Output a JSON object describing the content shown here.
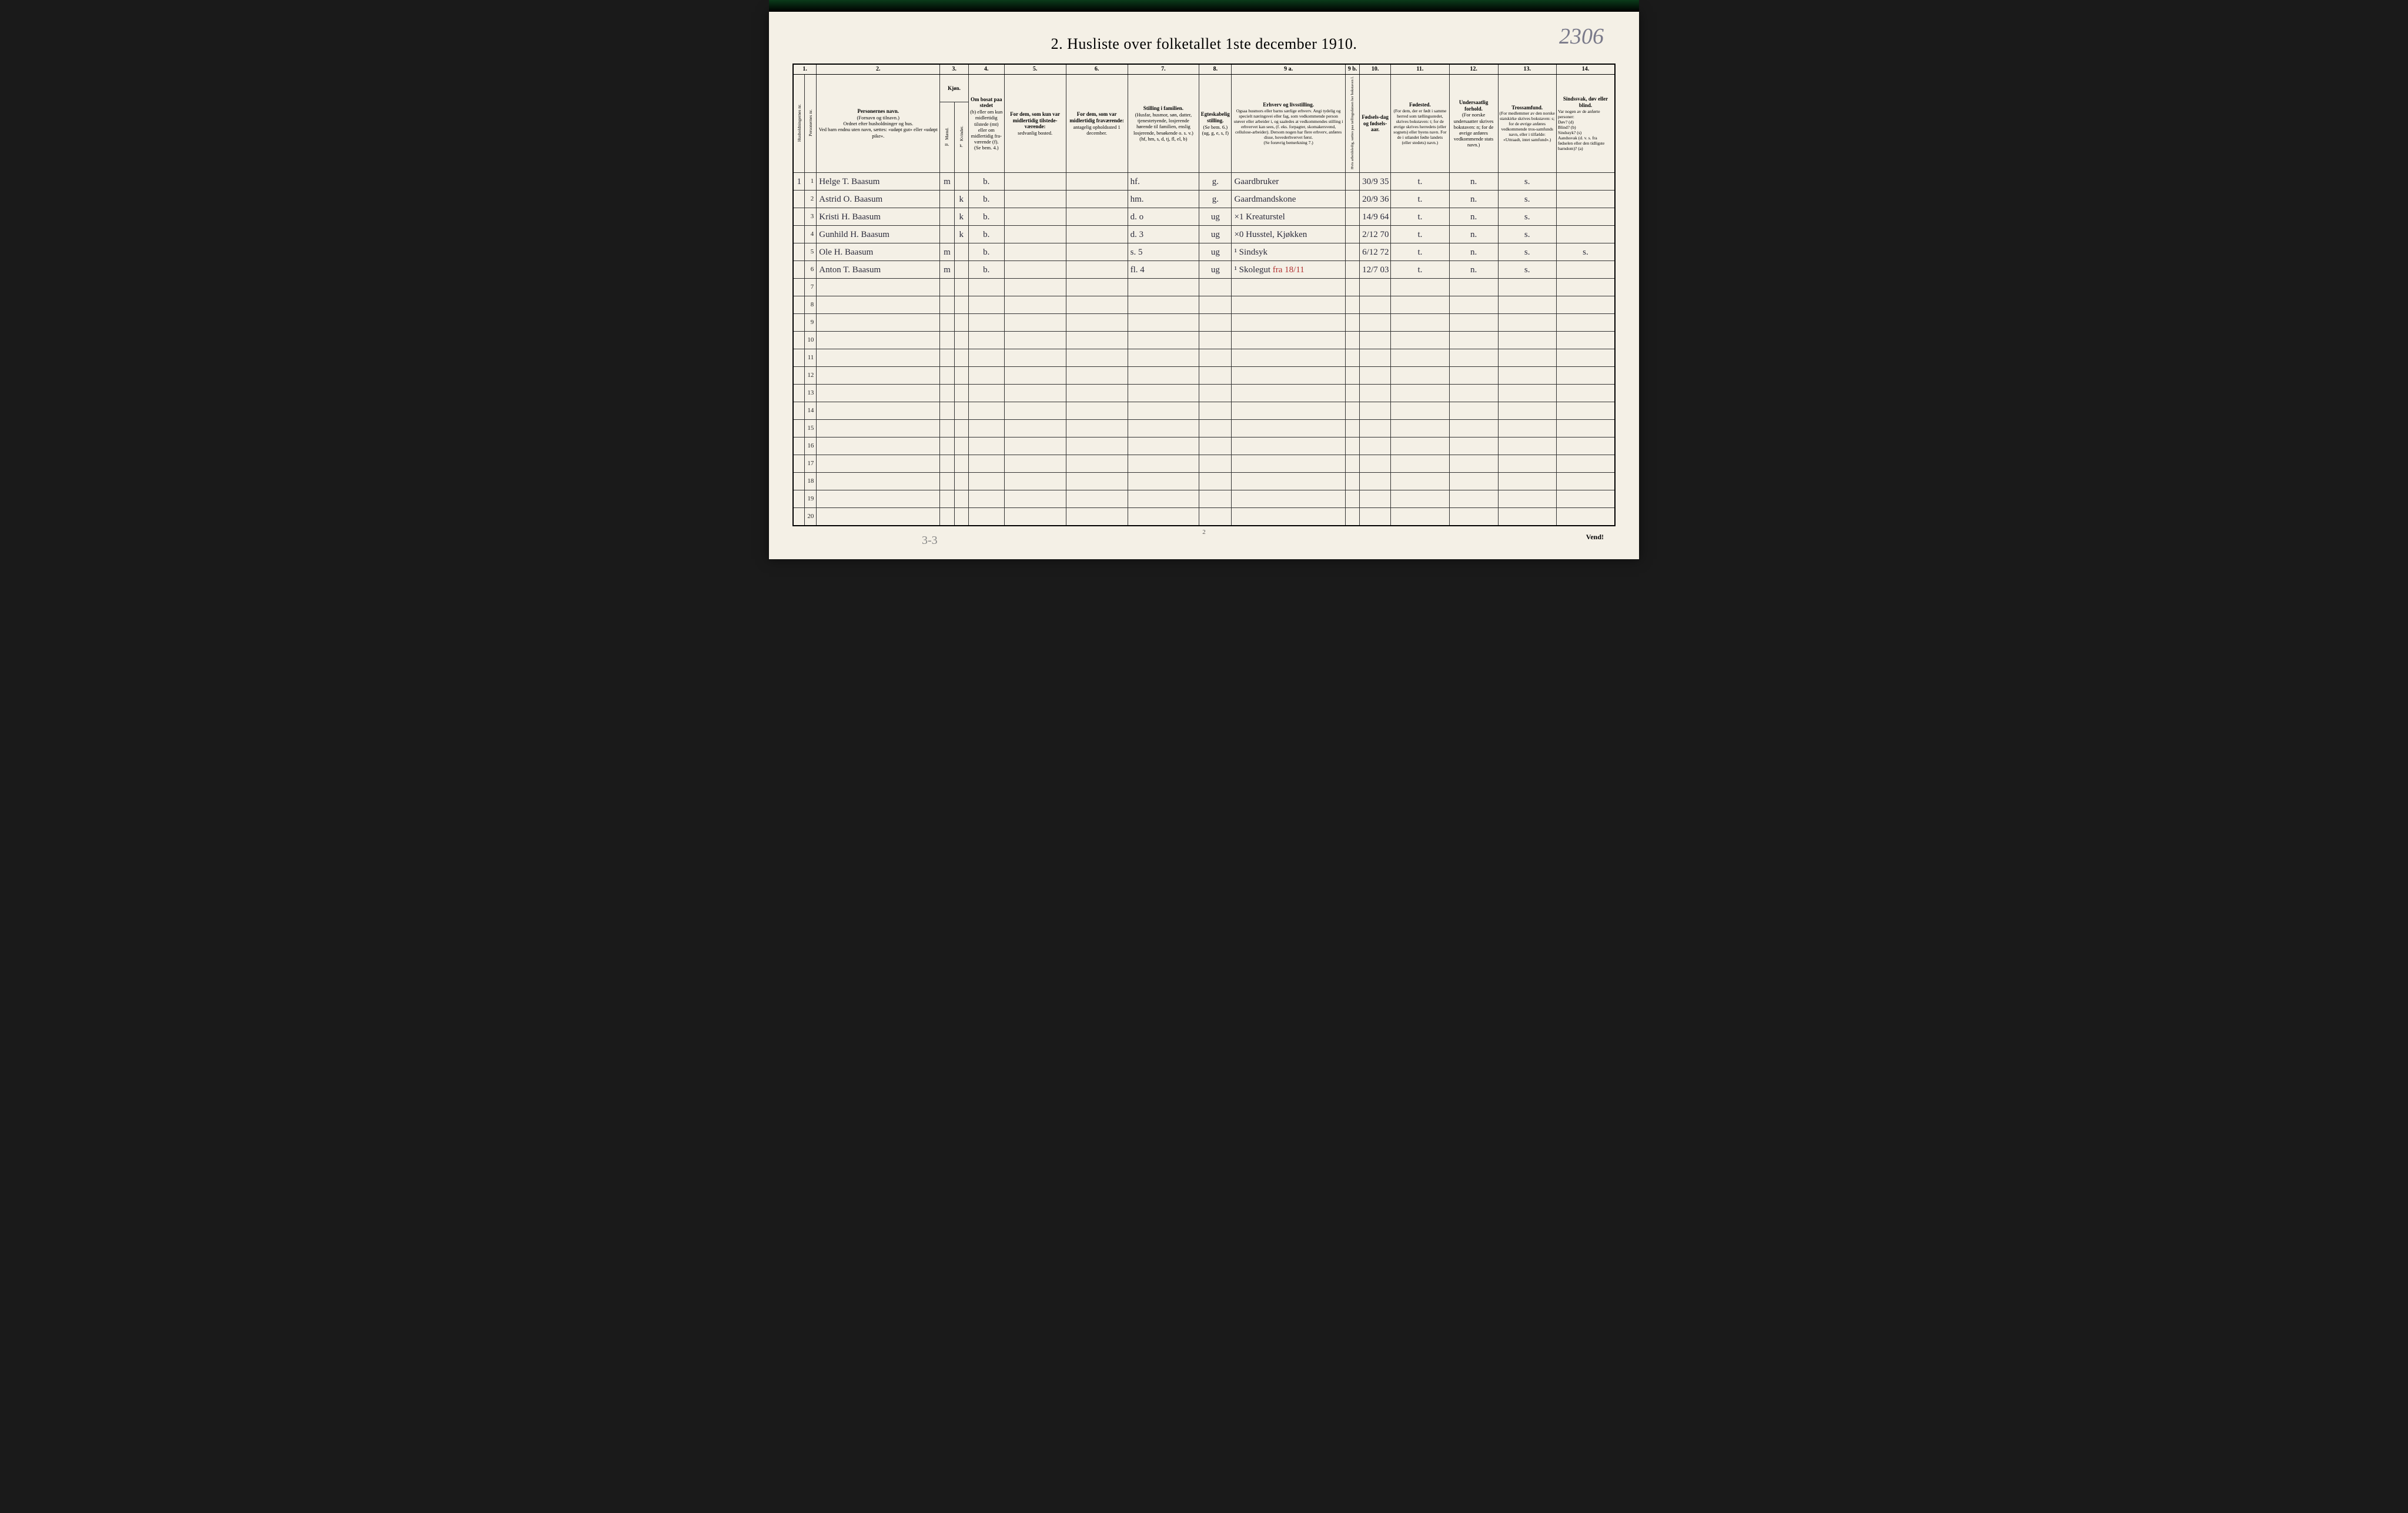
{
  "page": {
    "title": "2.  Husliste over folketallet 1ste december 1910.",
    "handwritten_number": "2306",
    "footer_page_num": "2",
    "bottom_note": "3-3",
    "vend": "Vend!",
    "colors": {
      "paper": "#f4f0e6",
      "ink": "#2a2a3a",
      "red_ink": "#b03030",
      "border": "#333333"
    }
  },
  "columns": {
    "numbers": [
      "1.",
      "2.",
      "3.",
      "4.",
      "5.",
      "6.",
      "7.",
      "8.",
      "9 a.",
      "9 b.",
      "10.",
      "11.",
      "12.",
      "13.",
      "14."
    ],
    "headers": {
      "c1": {
        "title": "Husholdningernes nr."
      },
      "c1b": {
        "title": "Personernes nr."
      },
      "c2": {
        "title": "Personernes navn.",
        "sub": "(Fornavn og tilnavn.)\nOrdnet efter husholdninger og hus.\nVed barn endnu uten navn, sættes: «udøpt gut» eller «udøpt pike»."
      },
      "c3": {
        "title": "Kjøn.",
        "sub_m": "Mænd.",
        "sub_k": "Kvinder.",
        "mk": "m.   k."
      },
      "c4": {
        "title": "Om bosat paa stedet",
        "sub": "(b) eller om kun midlertidig tilstede (mt) eller om midlertidig fra-værende (f).\n(Se bem. 4.)"
      },
      "c5": {
        "title": "For dem, som kun var midlertidig tilstede-værende:",
        "sub": "sedvanlig bosted."
      },
      "c6": {
        "title": "For dem, som var midlertidig fraværende:",
        "sub": "antagelig opholdssted 1 december."
      },
      "c7": {
        "title": "Stilling i familien.",
        "sub": "(Husfar, husmor, søn, datter, tjenestetyende, losjerende hørende til familien, enslig losjerende, besøkende o. s. v.)\n(hf, hm, s, d, tj, fl, el, b)"
      },
      "c8": {
        "title": "Egteskabelig stilling.",
        "sub": "(Se bem. 6.)\n(ug, g, e, s, f)"
      },
      "c9a": {
        "title": "Erhverv og livsstilling.",
        "sub": "Ogsaa husmors eller barns særlige erhverv. Angi tydelig og specielt næringsvei eller fag, som vedkommende person utøver eller arbeider i, og saaledes at vedkommendes stilling i erhvervet kan sees, (f. eks. forpagter, skomakersvend, cellulose-arbeider). Dersom nogen har flere erhverv, anføres disse, hovederhvervet først.\n(Se forøvrig bemerkning 7.)"
      },
      "c9b": {
        "title": "Hvis arbeidsledig, sættes paa tællingsdatoen her bokstaven l."
      },
      "c10": {
        "title": "Fødsels-dag og fødsels-aar."
      },
      "c11": {
        "title": "Fødested.",
        "sub": "(For dem, der er født i samme herred som tællingsstedet, skrives bokstaven: t; for de øvrige skrives herredets (eller sognets) eller byens navn. For de i utlandet fødte landets (eller stedets) navn.)"
      },
      "c12": {
        "title": "Undersaatlig forhold.",
        "sub": "(For norske undersaatter skrives bokstaven: n; for de øvrige anføres vedkommende stats navn.)"
      },
      "c13": {
        "title": "Trossamfund.",
        "sub": "(For medlemmer av den norske statskirke skrives bokstaven: s; for de øvrige anføres vedkommende tros-samfunds navn, eller i tilfælde: «Uttraadt, intet samfund».)"
      },
      "c14": {
        "title": "Sindssvak, døv eller blind.",
        "sub": "Var nogen av de anførte personer:\nDøv?        (d)\nBlind?      (b)\nSindssyk?  (s)\nAandssvak (d. v. s. fra fødselen eller den tidligste barndom)? (a)"
      }
    }
  },
  "rows": [
    {
      "hh": "1",
      "pn": "1",
      "name": "Helge T. Baasum",
      "sex_m": "m",
      "sex_k": "",
      "res": "b.",
      "c5": "",
      "c6": "",
      "family": "hf.",
      "marital": "g.",
      "occupation": "Gaardbruker",
      "c9b": "",
      "birth": "30/9 35",
      "birthplace": "t.",
      "nationality": "n.",
      "religion": "s.",
      "c14": ""
    },
    {
      "hh": "",
      "pn": "2",
      "name": "Astrid O. Baasum",
      "sex_m": "",
      "sex_k": "k",
      "res": "b.",
      "c5": "",
      "c6": "",
      "family": "hm.",
      "marital": "g.",
      "occupation": "Gaardmandskone",
      "c9b": "",
      "birth": "20/9 36",
      "birthplace": "t.",
      "nationality": "n.",
      "religion": "s.",
      "c14": ""
    },
    {
      "hh": "",
      "pn": "3",
      "name": "Kristi H. Baasum",
      "sex_m": "",
      "sex_k": "k",
      "res": "b.",
      "c5": "",
      "c6": "",
      "family": "d.        o",
      "marital": "ug",
      "occupation": "×1 Kreaturstel",
      "c9b": "",
      "birth": "14/9 64",
      "birthplace": "t.",
      "nationality": "n.",
      "religion": "s.",
      "c14": ""
    },
    {
      "hh": "",
      "pn": "4",
      "name": "Gunhild H. Baasum",
      "sex_m": "",
      "sex_k": "k",
      "res": "b.",
      "c5": "",
      "c6": "",
      "family": "d.        3",
      "marital": "ug",
      "occupation": "×0 Husstel, Kjøkken",
      "c9b": "",
      "birth": "2/12 70",
      "birthplace": "t.",
      "nationality": "n.",
      "religion": "s.",
      "c14": ""
    },
    {
      "hh": "",
      "pn": "5",
      "name": "Ole H. Baasum",
      "sex_m": "m",
      "sex_k": "",
      "res": "b.",
      "c5": "",
      "c6": "",
      "family": "s.        5",
      "marital": "ug",
      "occupation": "¹ Sindsyk",
      "c9b": "",
      "birth": "6/12 72",
      "birthplace": "t.",
      "nationality": "n.",
      "religion": "s.",
      "c14": "s."
    },
    {
      "hh": "",
      "pn": "6",
      "name": "Anton T. Baasum",
      "sex_m": "m",
      "sex_k": "",
      "res": "b.",
      "c5": "",
      "c6": "",
      "family": "fl.       4",
      "marital": "ug",
      "occupation": "¹ Skolegut  ",
      "occupation_red": "fra 18/11",
      "c9b": "",
      "birth": "12/7 03",
      "birthplace": "t.",
      "nationality": "n.",
      "religion": "s.",
      "c14": ""
    }
  ],
  "total_rows": 20
}
